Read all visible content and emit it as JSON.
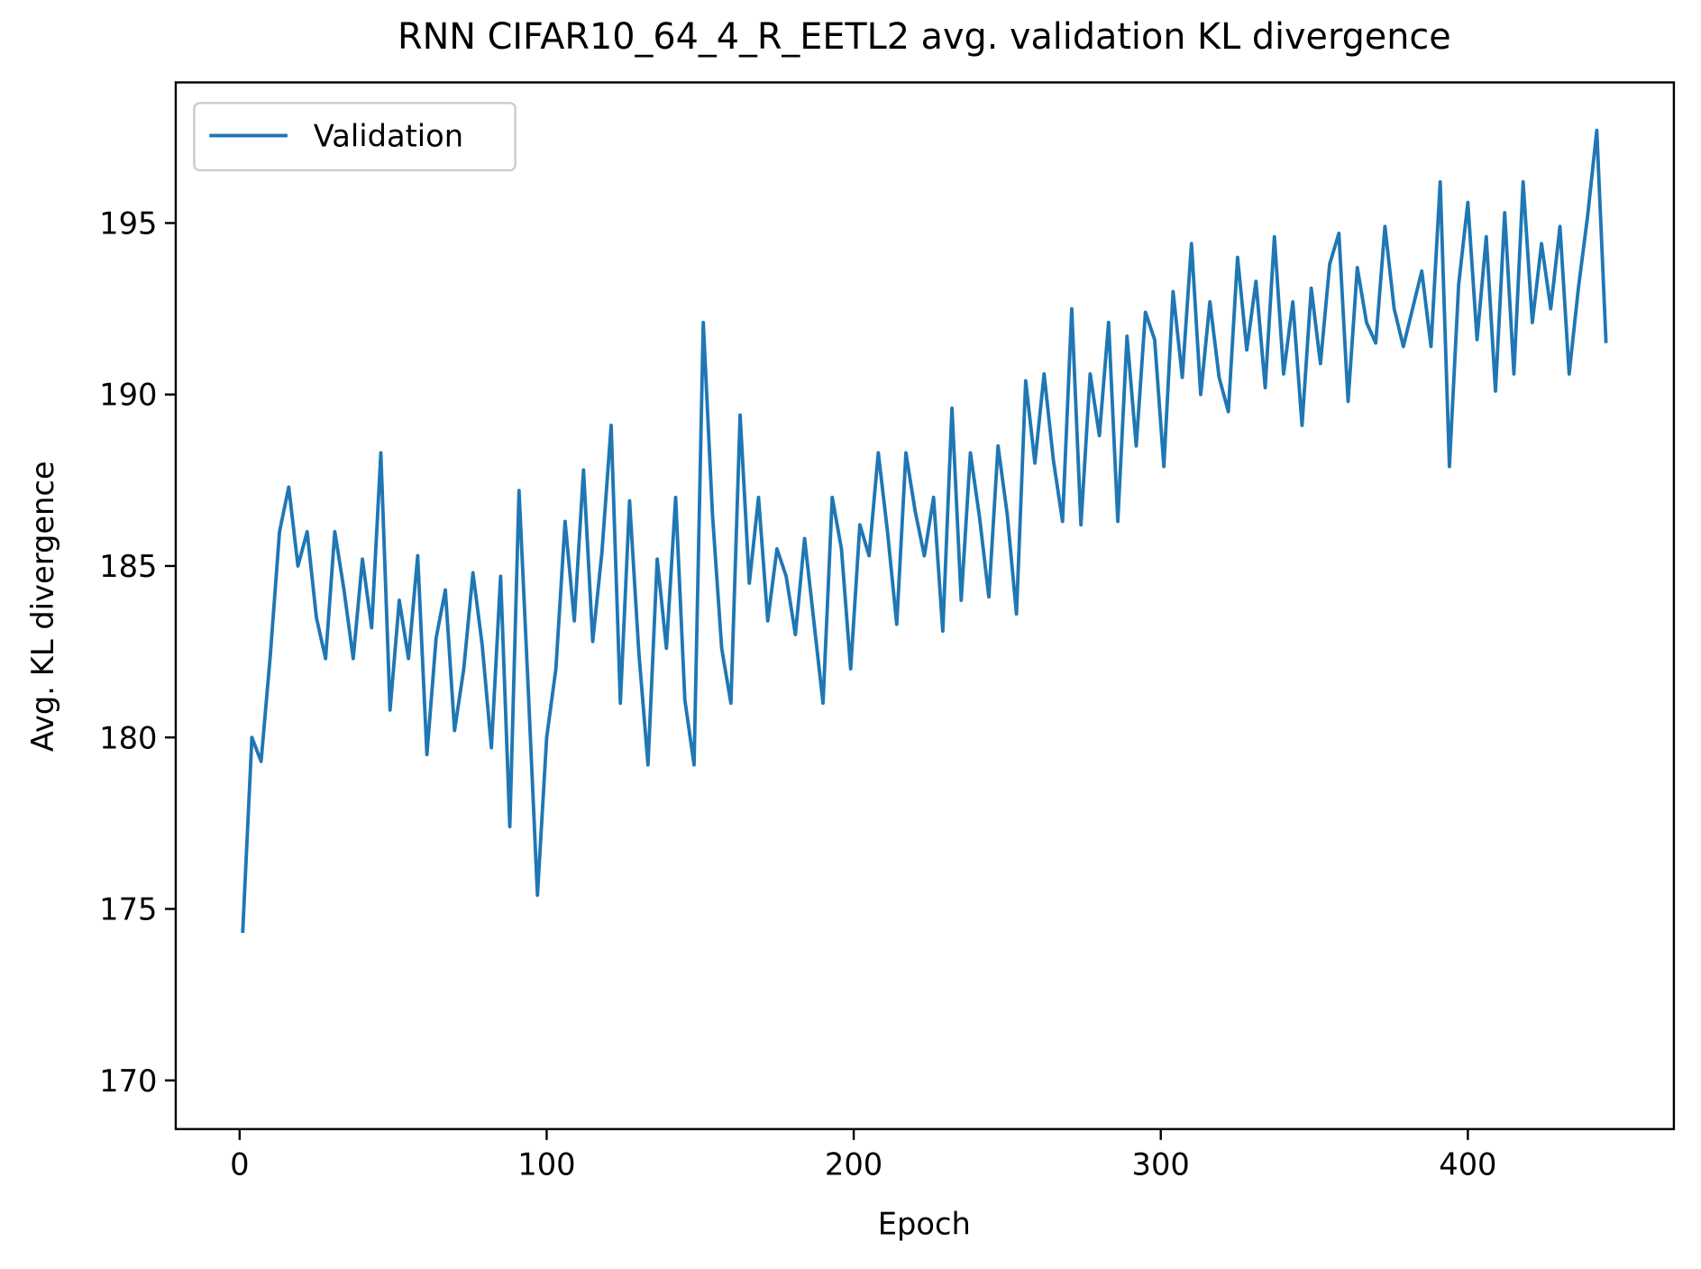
{
  "chart_data": {
    "type": "line",
    "title": "RNN CIFAR10_64_4_R_EETL2 avg. validation KL divergence",
    "x_label": "Epoch",
    "y_label": "Avg. KL divergence",
    "xlim": [
      -20.8,
      467.1
    ],
    "ylim": [
      168.58,
      199.1
    ],
    "xticks": [
      0,
      100,
      200,
      300,
      400
    ],
    "yticks": [
      170,
      175,
      180,
      185,
      190,
      195
    ],
    "grid": false,
    "legend": "upper left",
    "x": [
      1,
      4,
      7,
      10,
      13,
      16,
      19,
      22,
      25,
      28,
      31,
      34,
      37,
      40,
      43,
      46,
      49,
      52,
      55,
      58,
      61,
      64,
      67,
      70,
      73,
      76,
      79,
      82,
      85,
      88,
      91,
      94,
      97,
      100,
      103,
      106,
      109,
      112,
      115,
      118,
      121,
      124,
      127,
      130,
      133,
      136,
      139,
      142,
      145,
      148,
      151,
      154,
      157,
      160,
      163,
      166,
      169,
      172,
      175,
      178,
      181,
      184,
      187,
      190,
      193,
      196,
      199,
      202,
      205,
      208,
      211,
      214,
      217,
      220,
      223,
      226,
      229,
      232,
      235,
      238,
      241,
      244,
      247,
      250,
      253,
      256,
      259,
      262,
      265,
      268,
      271,
      274,
      277,
      280,
      283,
      286,
      289,
      292,
      295,
      298,
      301,
      304,
      307,
      310,
      313,
      316,
      319,
      322,
      325,
      328,
      331,
      334,
      337,
      340,
      343,
      346,
      349,
      352,
      355,
      358,
      361,
      364,
      367,
      370,
      373,
      376,
      379,
      382,
      385,
      388,
      391,
      394,
      397,
      400,
      403,
      406,
      409,
      412,
      415,
      418,
      421,
      424,
      427,
      430,
      433,
      436,
      439,
      442,
      445
    ],
    "series": [
      {
        "name": "Validation",
        "color": "#1f77b4",
        "values": [
          174.3,
          180,
          179.3,
          182.4,
          186,
          187.3,
          185,
          186,
          183.5,
          182.3,
          186,
          184.3,
          182.3,
          185.2,
          183.2,
          188.3,
          180.8,
          184,
          182.3,
          185.3,
          179.5,
          182.9,
          184.3,
          180.2,
          182,
          184.8,
          182.7,
          179.7,
          184.7,
          177.4,
          187.2,
          181.4,
          175.4,
          180,
          182,
          186.3,
          183.4,
          187.8,
          182.8,
          185.4,
          189.1,
          181,
          186.9,
          182.5,
          179.2,
          185.2,
          182.6,
          187,
          181.1,
          179.2,
          192.1,
          186.5,
          182.6,
          181,
          189.4,
          184.5,
          187,
          183.4,
          185.5,
          184.7,
          183,
          185.8,
          183.4,
          181,
          187,
          185.5,
          182,
          186.2,
          185.3,
          188.3,
          186,
          183.3,
          188.3,
          186.6,
          185.3,
          187,
          183.1,
          189.6,
          184,
          188.3,
          186.4,
          184.1,
          188.5,
          186.5,
          183.6,
          190.4,
          188,
          190.6,
          188.1,
          186.3,
          192.5,
          186.2,
          190.6,
          188.8,
          192.1,
          186.3,
          191.7,
          188.5,
          192.4,
          191.6,
          187.9,
          193,
          190.5,
          194.4,
          190,
          192.7,
          190.5,
          189.5,
          194,
          191.3,
          193.3,
          190.2,
          194.6,
          190.6,
          192.7,
          189.1,
          193.1,
          190.9,
          193.8,
          194.7,
          189.8,
          193.7,
          192.1,
          191.5,
          194.9,
          192.5,
          191.4,
          192.5,
          193.6,
          191.4,
          196.2,
          187.9,
          193.2,
          195.6,
          191.6,
          194.6,
          190.1,
          195.3,
          190.6,
          196.2,
          192.1,
          194.4,
          192.5,
          194.9,
          190.6,
          193.1,
          195.2,
          197.7,
          191.5
        ]
      }
    ]
  }
}
